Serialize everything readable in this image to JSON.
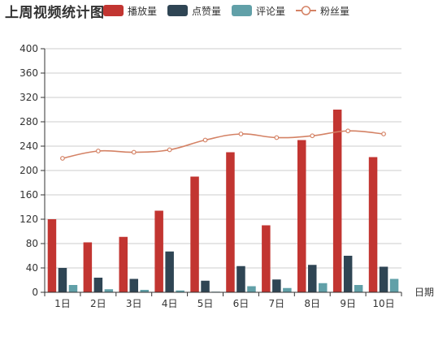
{
  "title": "上周视频统计图",
  "chart_data": {
    "type": "bar",
    "title": "上周视频统计图",
    "xlabel": "日期",
    "ylabel": "",
    "categories": [
      "1日",
      "2日",
      "3日",
      "4日",
      "5日",
      "6日",
      "7日",
      "8日",
      "9日",
      "10日"
    ],
    "ylim": [
      0,
      400
    ],
    "yticks": [
      0,
      40,
      80,
      120,
      160,
      200,
      240,
      280,
      320,
      360,
      400
    ],
    "grid": true,
    "legend_position": "top",
    "series": [
      {
        "name": "播放量",
        "type": "bar",
        "color": "#c23531",
        "values": [
          120,
          82,
          91,
          134,
          190,
          230,
          110,
          250,
          300,
          222
        ]
      },
      {
        "name": "点赞量",
        "type": "bar",
        "color": "#2f4554",
        "values": [
          40,
          24,
          22,
          67,
          19,
          43,
          21,
          45,
          60,
          42
        ]
      },
      {
        "name": "评论量",
        "type": "bar",
        "color": "#61a0a8",
        "values": [
          12,
          5,
          4,
          3,
          1,
          10,
          7,
          15,
          12,
          22
        ]
      },
      {
        "name": "粉丝量",
        "type": "line",
        "color": "#d48265",
        "values": [
          220,
          232,
          230,
          234,
          250,
          260,
          254,
          257,
          265,
          260
        ]
      }
    ]
  }
}
